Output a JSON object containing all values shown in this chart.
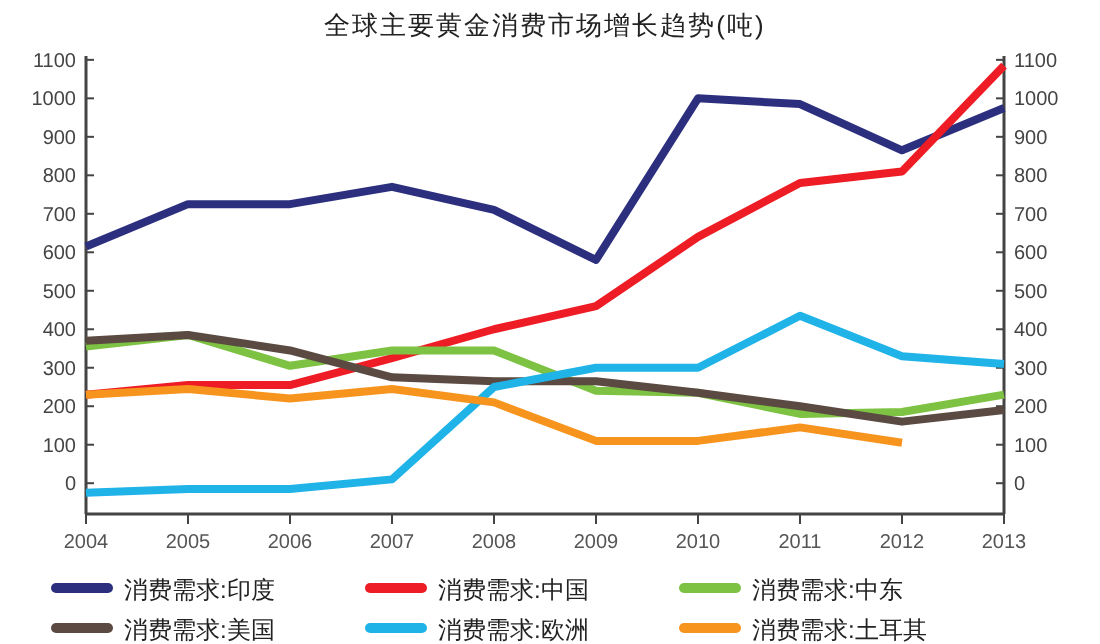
{
  "chart_data": {
    "type": "line",
    "title": "全球主要黄金消费市场增长趋势(吨)",
    "x": [
      2004,
      2005,
      2006,
      2007,
      2008,
      2009,
      2010,
      2011,
      2012,
      2013
    ],
    "xlim": [
      2004,
      2013
    ],
    "xticks": [
      2004,
      2005,
      2006,
      2007,
      2008,
      2009,
      2010,
      2011,
      2012,
      2013
    ],
    "ylim": [
      -80,
      1110
    ],
    "yticks": [
      0,
      100,
      200,
      300,
      400,
      500,
      600,
      700,
      800,
      900,
      1000,
      1100
    ],
    "y2lim": [
      -80,
      1110
    ],
    "y2ticks": [
      0,
      100,
      200,
      300,
      400,
      500,
      600,
      700,
      800,
      900,
      1000,
      1100
    ],
    "grid": false,
    "legend": "bottom",
    "marker": "none",
    "line_style": "solid",
    "series": [
      {
        "name": "消费需求:印度",
        "color": "#2b2f7e",
        "values": [
          615,
          725,
          725,
          770,
          710,
          580,
          1000,
          985,
          865,
          975
        ]
      },
      {
        "name": "消费需求:中国",
        "color": "#ee1c24",
        "values": [
          230,
          255,
          255,
          325,
          400,
          460,
          640,
          780,
          810,
          1085
        ]
      },
      {
        "name": "消费需求:中东",
        "color": "#7dc242",
        "values": [
          355,
          385,
          305,
          345,
          345,
          240,
          235,
          180,
          185,
          230
        ]
      },
      {
        "name": "消费需求:美国",
        "color": "#5a4a42",
        "values": [
          370,
          385,
          345,
          275,
          265,
          265,
          235,
          200,
          160,
          190
        ]
      },
      {
        "name": "消费需求:欧洲",
        "color": "#1fb3e8",
        "values": [
          -25,
          -15,
          -15,
          10,
          250,
          300,
          300,
          435,
          330,
          310
        ]
      },
      {
        "name": "消费需求:土耳其",
        "color": "#f7941d",
        "values": [
          230,
          245,
          220,
          245,
          210,
          110,
          110,
          145,
          105,
          null
        ]
      }
    ]
  }
}
